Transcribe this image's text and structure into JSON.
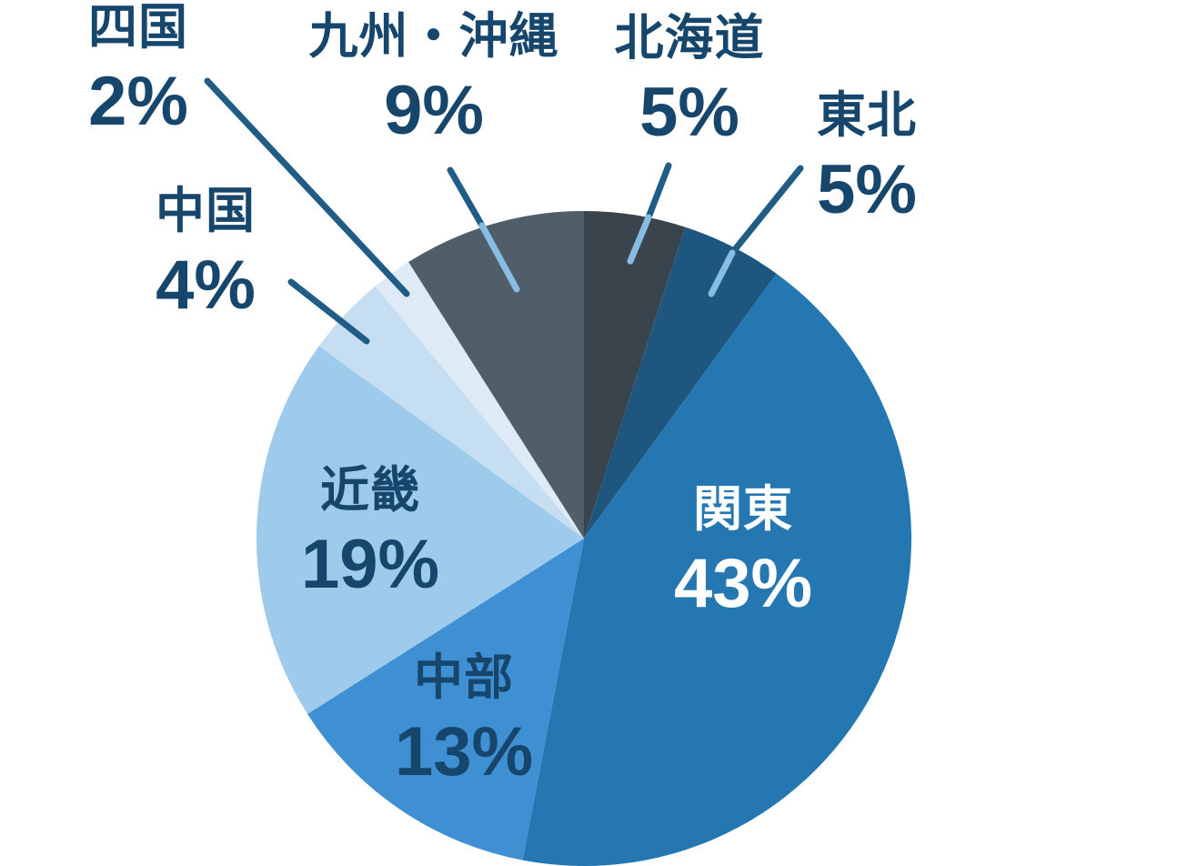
{
  "chart_data": {
    "type": "pie",
    "title": "",
    "unit": "%",
    "total": 100,
    "start_angle_deg": 0,
    "direction": "clockwise",
    "legend": "none",
    "series": [
      {
        "id": "hokkaido",
        "name": "北海道",
        "value": 5,
        "pct_label": "5%",
        "color": "#3a444c",
        "label_placement": "outside"
      },
      {
        "id": "tohoku",
        "name": "東北",
        "value": 5,
        "pct_label": "5%",
        "color": "#1d567f",
        "label_placement": "outside"
      },
      {
        "id": "kanto",
        "name": "関東",
        "value": 43,
        "pct_label": "43%",
        "color": "#2577b1",
        "label_placement": "inside-white"
      },
      {
        "id": "chubu",
        "name": "中部",
        "value": 13,
        "pct_label": "13%",
        "color": "#3e90d3",
        "label_placement": "inside"
      },
      {
        "id": "kinki",
        "name": "近畿",
        "value": 19,
        "pct_label": "19%",
        "color": "#9ecbec",
        "label_placement": "inside"
      },
      {
        "id": "chugoku",
        "name": "中国",
        "value": 4,
        "pct_label": "4%",
        "color": "#c6def2",
        "label_placement": "outside"
      },
      {
        "id": "shikoku",
        "name": "四国",
        "value": 2,
        "pct_label": "2%",
        "color": "#deeaf6",
        "label_placement": "outside"
      },
      {
        "id": "kyushu-okinawa",
        "name": "九州・沖縄",
        "value": 9,
        "pct_label": "9%",
        "color": "#4f5e68",
        "label_placement": "outside"
      }
    ],
    "colors": {
      "label_text_dark": "#16466b",
      "label_text_light": "#ffffff",
      "leader_line_dark": "#1f5c86",
      "leader_line_light": "#87bde1",
      "background": "#ffffff"
    }
  }
}
